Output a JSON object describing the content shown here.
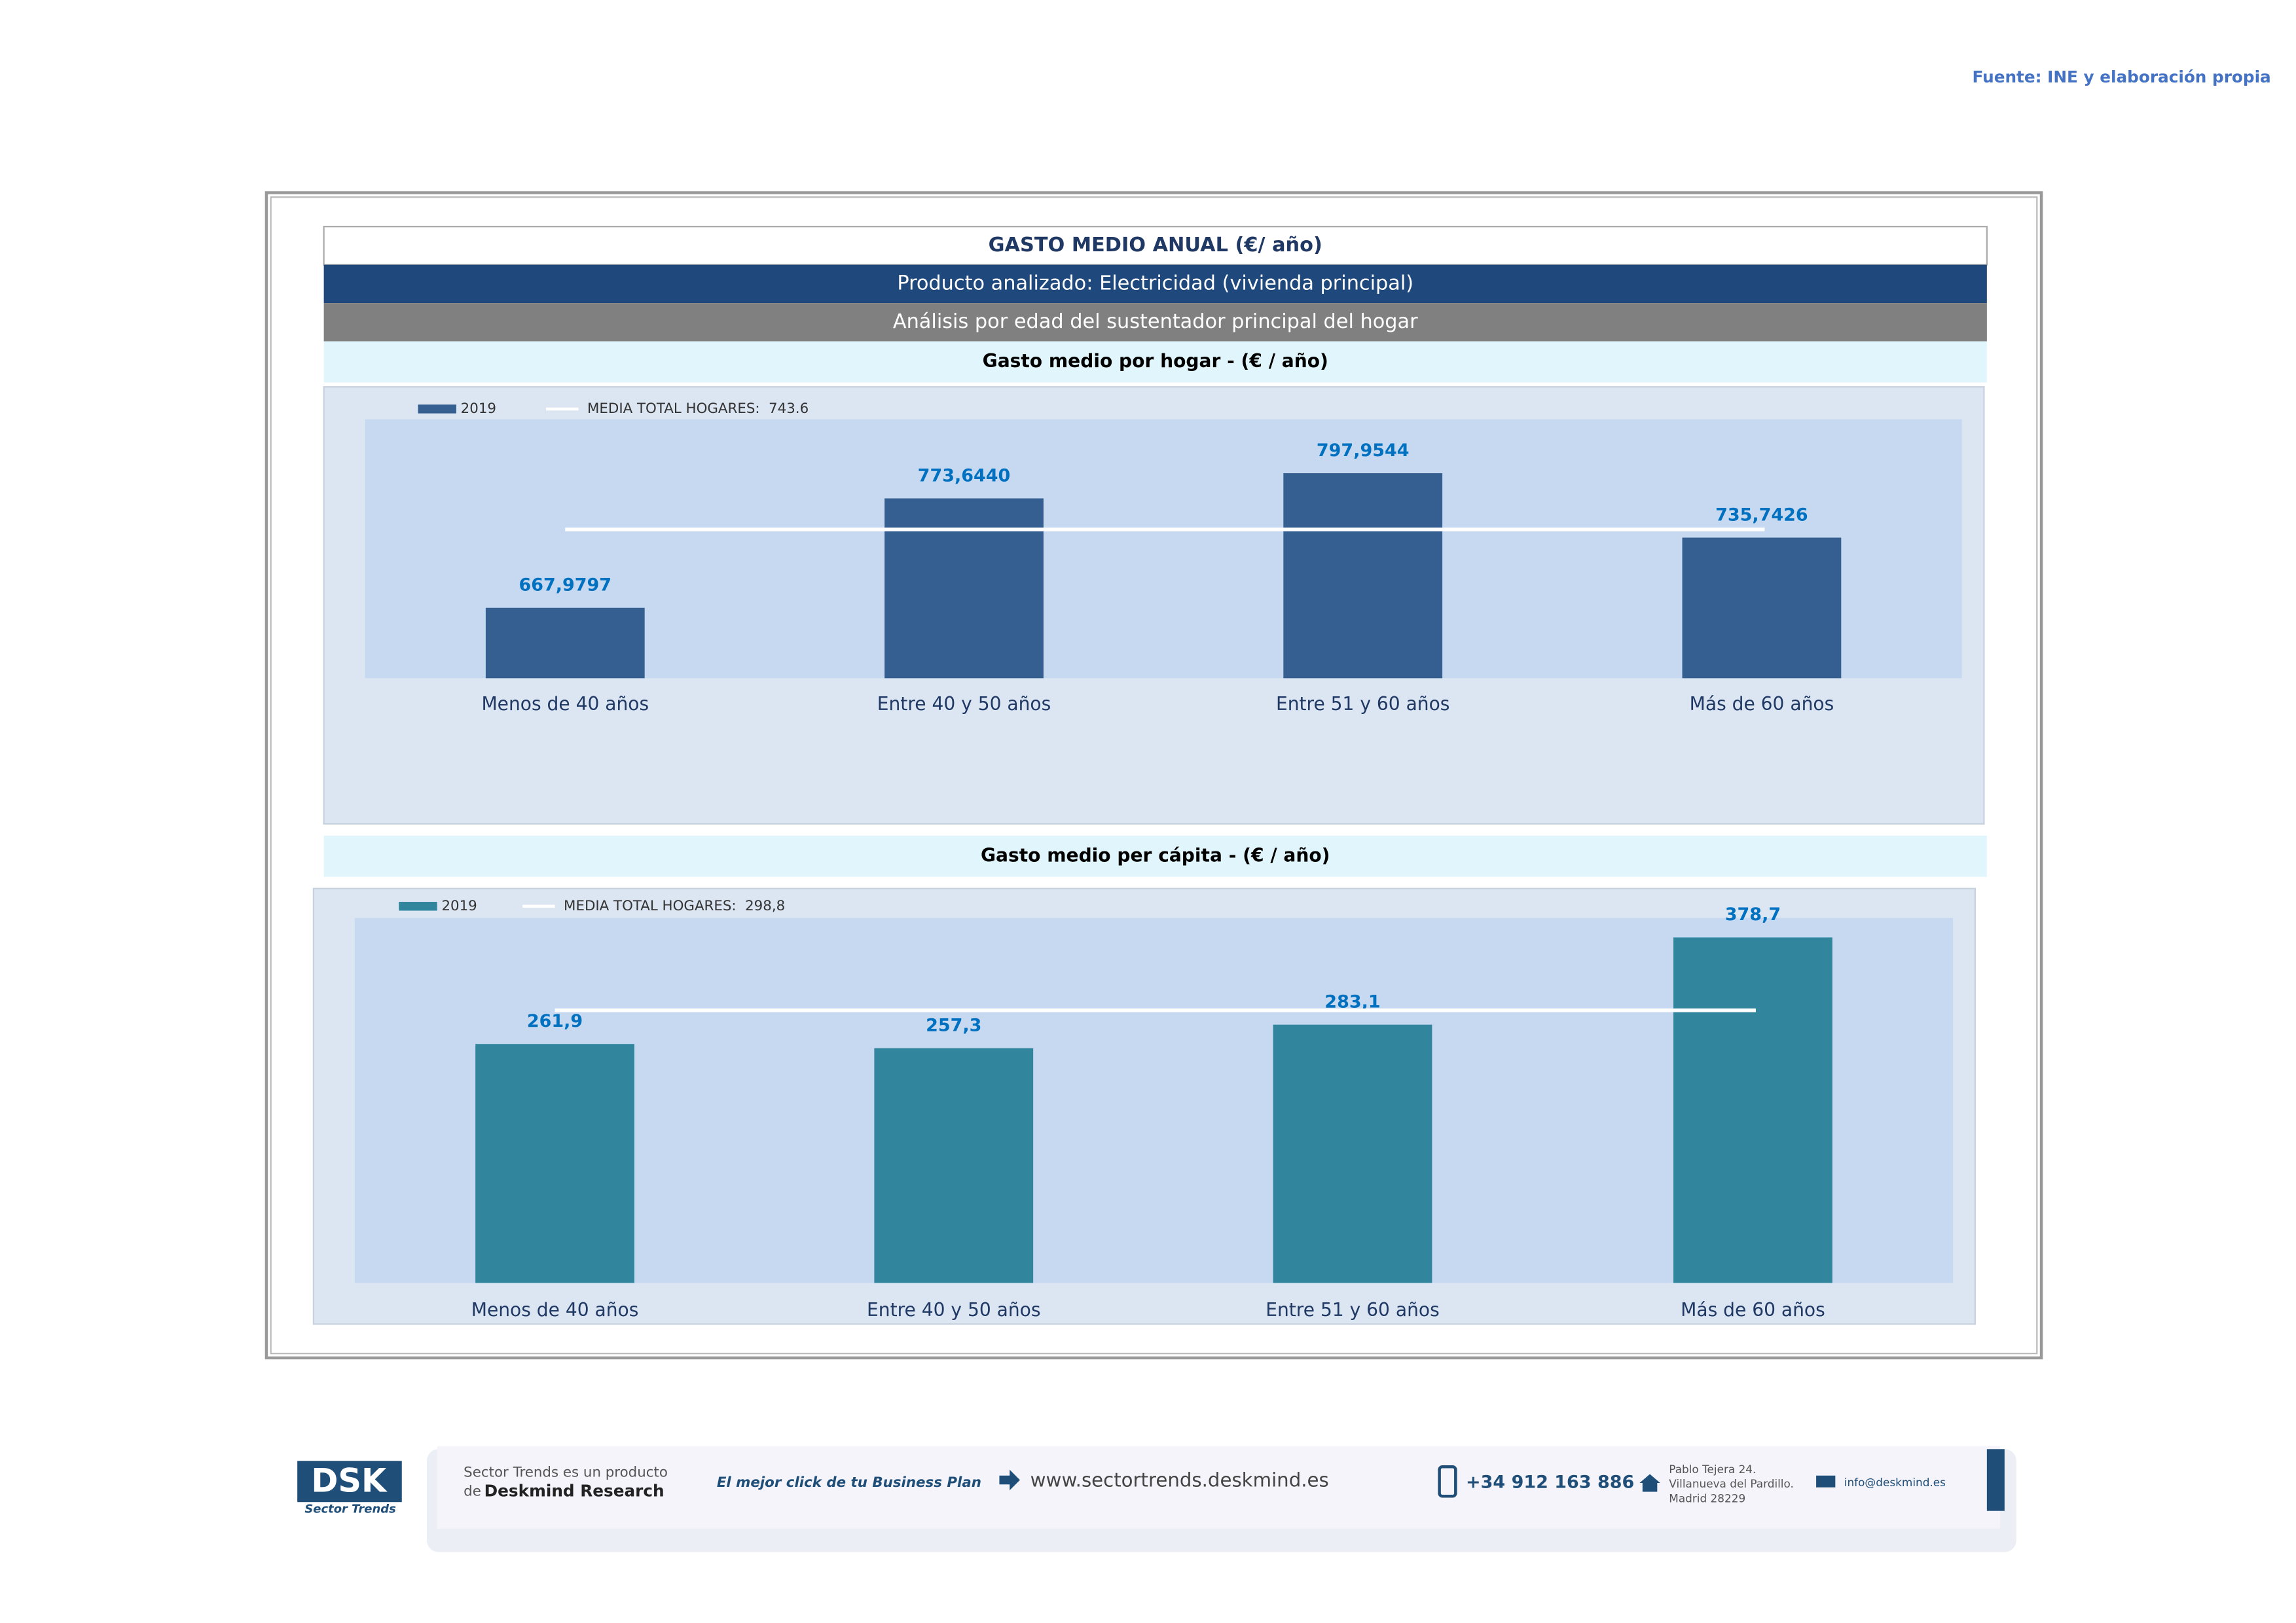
{
  "source": "Fuente: INE y elaboración propia",
  "header": {
    "title": "GASTO MEDIO ANUAL (€/ año)",
    "product": "Producto analizado: Electricidad (vivienda principal)",
    "analysis": "Análisis por edad del sustentador principal del hogar"
  },
  "chart_data": [
    {
      "type": "bar",
      "title": "Gasto medio por hogar -  (€ / año)",
      "categories": [
        "Menos de 40 años",
        "Entre 40 y 50 años",
        "Entre 51  y 60 años",
        "Más de 60 años"
      ],
      "series": [
        {
          "name": "2019",
          "color": "#365f91",
          "values": [
            667.9797,
            773.644,
            797.9544,
            735.7426
          ],
          "value_labels": [
            "667,9797",
            "773,6440",
            "797,9544",
            "735,7426"
          ]
        }
      ],
      "reference": {
        "name": "MEDIA TOTAL  HOGARES:",
        "value": 743.6,
        "color": "#ffffff"
      },
      "ylim": [
        600,
        850
      ]
    },
    {
      "type": "bar",
      "title": "Gasto medio per cápita -  (€ / año)",
      "categories": [
        "Menos de 40 años",
        "Entre 40 y 50 años",
        "Entre 51  y 60 años",
        "Más de 60 años"
      ],
      "series": [
        {
          "name": "2019",
          "color": "#31859c",
          "values": [
            261.9,
            257.3,
            283.1,
            378.7
          ],
          "value_labels": [
            "261,9",
            "257,3",
            "283,1",
            "378,7"
          ]
        }
      ],
      "reference": {
        "name": "MEDIA TOTAL  HOGARES:",
        "value": 298.8,
        "label": "298,8",
        "color": "#ffffff"
      },
      "ylim": [
        0,
        400
      ]
    }
  ],
  "footer": {
    "logo": "DSK",
    "logo_sub": "Sector Trends",
    "line1": "Sector Trends es un producto",
    "line2a": "de",
    "line2b": "Deskmind Research",
    "slogan": "El mejor click de tu Business Plan",
    "web": "www.sectortrends.deskmind.es",
    "phone": "+34 912 163 886",
    "address1": "Pablo Tejera 24.",
    "address2": "Villanueva del Pardillo.",
    "address3": "Madrid 28229",
    "email": "info@deskmind.es"
  }
}
